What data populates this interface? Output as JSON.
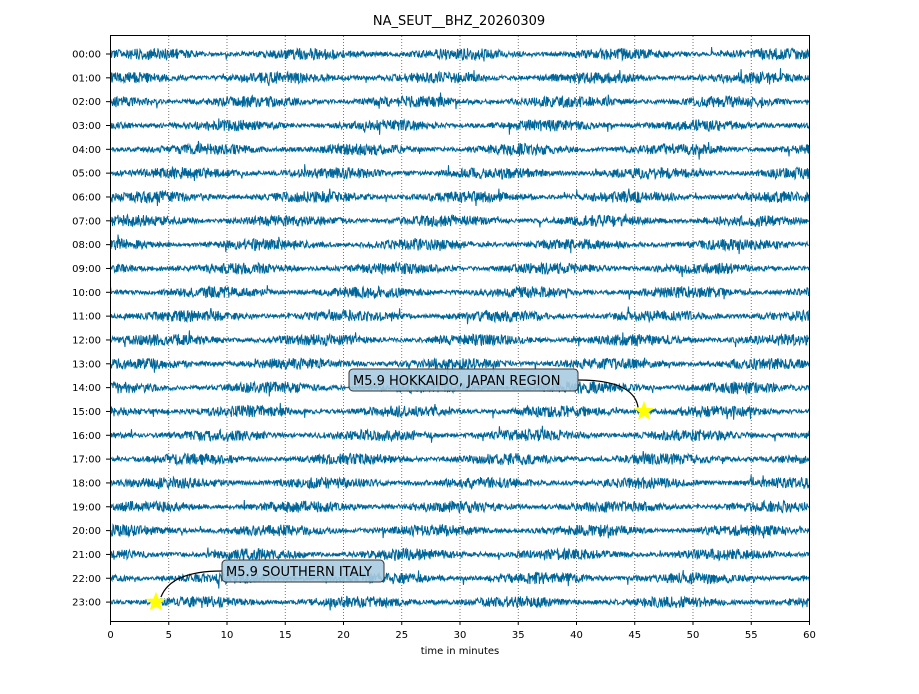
{
  "chart_data": {
    "type": "line",
    "title": "NA_SEUT__BHZ_20260309",
    "xlabel": "time in minutes",
    "ylabel": "",
    "xlim": [
      0,
      60
    ],
    "xticks": [
      0,
      5,
      10,
      15,
      20,
      25,
      30,
      35,
      40,
      45,
      50,
      55,
      60
    ],
    "grid": "vertical dotted lines every 5 minutes",
    "row_labels": [
      "00:00",
      "01:00",
      "02:00",
      "03:00",
      "04:00",
      "05:00",
      "06:00",
      "07:00",
      "08:00",
      "09:00",
      "10:00",
      "11:00",
      "12:00",
      "13:00",
      "14:00",
      "15:00",
      "16:00",
      "17:00",
      "18:00",
      "19:00",
      "20:00",
      "21:00",
      "22:00",
      "23:00"
    ],
    "trace_color": "#006699",
    "events": [
      {
        "label": "M5.9 HOKKAIDO, JAPAN REGION",
        "row": 15,
        "minute": 45.8
      },
      {
        "label": "M5.9 SOUTHERN ITALY",
        "row": 23,
        "minute": 3.9
      }
    ],
    "marker_color": "#ffff00",
    "annotation_fill": "#a9cbe0"
  }
}
